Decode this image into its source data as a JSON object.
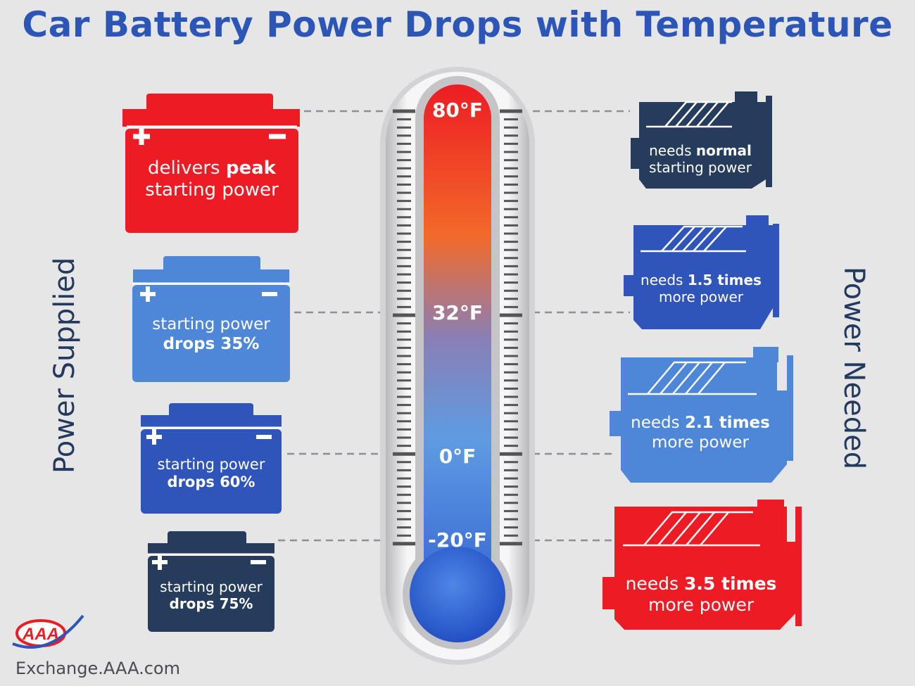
{
  "title": "Car Battery Power Drops with Temperature",
  "left_label": "Power Supplied",
  "right_label": "Power Needed",
  "temperatures": [
    "80°F",
    "32°F",
    "0°F",
    "-20°F"
  ],
  "batteries": [
    {
      "line1_pre": "delivers ",
      "line1_bold": "peak",
      "line2": "starting power",
      "color": "#ed1c24"
    },
    {
      "line1_pre": "starting power",
      "line1_bold": "",
      "line2": "drops 35%",
      "color": "#4e86d8"
    },
    {
      "line1_pre": "starting power",
      "line1_bold": "",
      "line2": "drops 60%",
      "color": "#2f55bb"
    },
    {
      "line1_pre": "starting power",
      "line1_bold": "",
      "line2": "drops 75%",
      "color": "#253c5c"
    }
  ],
  "engines": [
    {
      "line1_pre": "needs ",
      "line1_bold": "normal",
      "line2": "starting power",
      "color": "#253c5c"
    },
    {
      "line1_pre": "needs ",
      "line1_bold": "1.5 times",
      "line2": "more power",
      "color": "#2f55bb"
    },
    {
      "line1_pre": "needs ",
      "line1_bold": "2.1 times",
      "line2": "more power",
      "color": "#4e86d8"
    },
    {
      "line1_pre": "needs ",
      "line1_bold": "3.5 times",
      "line2": "more power",
      "color": "#ed1c24"
    }
  ],
  "logo_text": "AAA",
  "footer": "Exchange.AAA.com"
}
